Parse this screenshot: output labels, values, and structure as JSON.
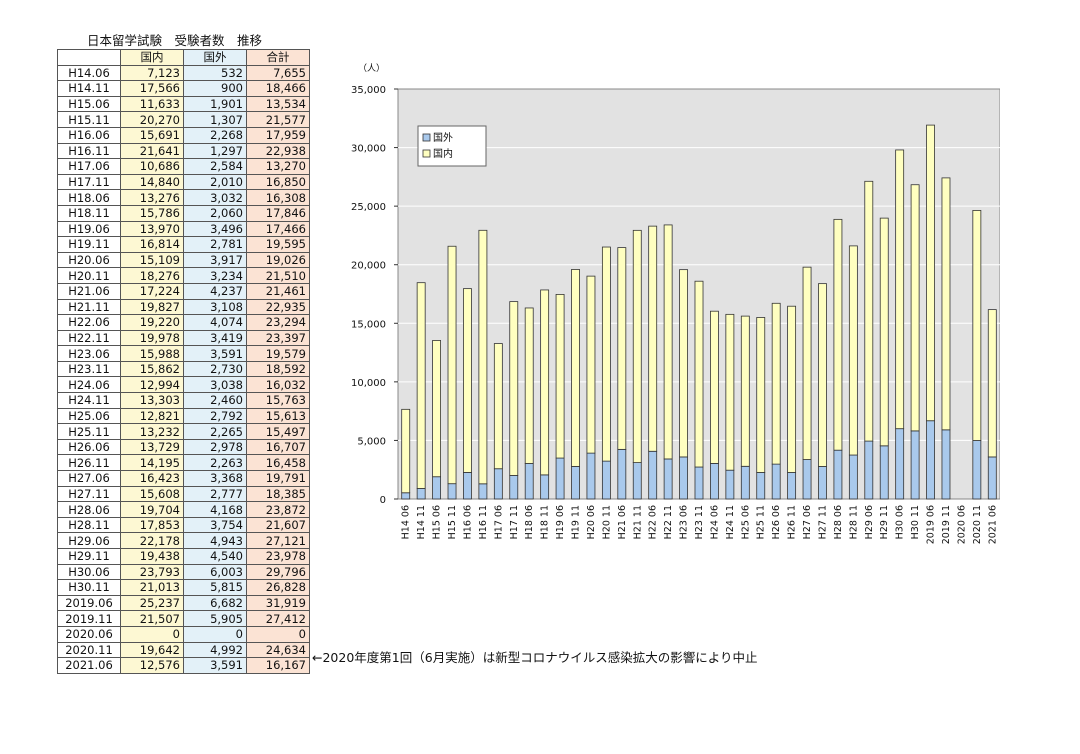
{
  "table": {
    "title": "日本留学試験　受験者数　推移",
    "headers": [
      "",
      "国内",
      "国外",
      "合計"
    ],
    "rows": [
      [
        "H14.06",
        "7,123",
        "532",
        "7,655"
      ],
      [
        "H14.11",
        "17,566",
        "900",
        "18,466"
      ],
      [
        "H15.06",
        "11,633",
        "1,901",
        "13,534"
      ],
      [
        "H15.11",
        "20,270",
        "1,307",
        "21,577"
      ],
      [
        "H16.06",
        "15,691",
        "2,268",
        "17,959"
      ],
      [
        "H16.11",
        "21,641",
        "1,297",
        "22,938"
      ],
      [
        "H17.06",
        "10,686",
        "2,584",
        "13,270"
      ],
      [
        "H17.11",
        "14,840",
        "2,010",
        "16,850"
      ],
      [
        "H18.06",
        "13,276",
        "3,032",
        "16,308"
      ],
      [
        "H18.11",
        "15,786",
        "2,060",
        "17,846"
      ],
      [
        "H19.06",
        "13,970",
        "3,496",
        "17,466"
      ],
      [
        "H19.11",
        "16,814",
        "2,781",
        "19,595"
      ],
      [
        "H20.06",
        "15,109",
        "3,917",
        "19,026"
      ],
      [
        "H20.11",
        "18,276",
        "3,234",
        "21,510"
      ],
      [
        "H21.06",
        "17,224",
        "4,237",
        "21,461"
      ],
      [
        "H21.11",
        "19,827",
        "3,108",
        "22,935"
      ],
      [
        "H22.06",
        "19,220",
        "4,074",
        "23,294"
      ],
      [
        "H22.11",
        "19,978",
        "3,419",
        "23,397"
      ],
      [
        "H23.06",
        "15,988",
        "3,591",
        "19,579"
      ],
      [
        "H23.11",
        "15,862",
        "2,730",
        "18,592"
      ],
      [
        "H24.06",
        "12,994",
        "3,038",
        "16,032"
      ],
      [
        "H24.11",
        "13,303",
        "2,460",
        "15,763"
      ],
      [
        "H25.06",
        "12,821",
        "2,792",
        "15,613"
      ],
      [
        "H25.11",
        "13,232",
        "2,265",
        "15,497"
      ],
      [
        "H26.06",
        "13,729",
        "2,978",
        "16,707"
      ],
      [
        "H26.11",
        "14,195",
        "2,263",
        "16,458"
      ],
      [
        "H27.06",
        "16,423",
        "3,368",
        "19,791"
      ],
      [
        "H27.11",
        "15,608",
        "2,777",
        "18,385"
      ],
      [
        "H28.06",
        "19,704",
        "4,168",
        "23,872"
      ],
      [
        "H28.11",
        "17,853",
        "3,754",
        "21,607"
      ],
      [
        "H29.06",
        "22,178",
        "4,943",
        "27,121"
      ],
      [
        "H29.11",
        "19,438",
        "4,540",
        "23,978"
      ],
      [
        "H30.06",
        "23,793",
        "6,003",
        "29,796"
      ],
      [
        "H30.11",
        "21,013",
        "5,815",
        "26,828"
      ],
      [
        "2019.06",
        "25,237",
        "6,682",
        "31,919"
      ],
      [
        "2019.11",
        "21,507",
        "5,905",
        "27,412"
      ],
      [
        "2020.06",
        "0",
        "0",
        "0"
      ],
      [
        "2020.11",
        "19,642",
        "4,992",
        "24,634"
      ],
      [
        "2021.06",
        "12,576",
        "3,591",
        "16,167"
      ]
    ]
  },
  "note": "←2020年度第1回（6月実施）は新型コロナウイルス感染拡大の影響により中止",
  "colors": {
    "domestic": "#ffffc0",
    "overseas": "#a9c9ec",
    "plot_bg": "#e2e2e2",
    "grid": "#ffffff",
    "bar_edge": "#333333"
  },
  "chart_data": {
    "type": "bar",
    "stacked": true,
    "unit_label": "（人）",
    "categories": [
      "H14 06",
      "H14 11",
      "H15 06",
      "H15 11",
      "H16 06",
      "H16 11",
      "H17 06",
      "H17 11",
      "H18 06",
      "H18 11",
      "H19 06",
      "H19 11",
      "H20 06",
      "H20 11",
      "H21 06",
      "H21 11",
      "H22 06",
      "H22 11",
      "H23 06",
      "H23 11",
      "H24 06",
      "H24 11",
      "H25 06",
      "H25 11",
      "H26 06",
      "H26 11",
      "H27 06",
      "H27 11",
      "H28 06",
      "H28 11",
      "H29 06",
      "H29 11",
      "H30 06",
      "H30 11",
      "2019 06",
      "2019 11",
      "2020 06",
      "2020 11",
      "2021 06"
    ],
    "series": [
      {
        "name": "国外",
        "values": [
          532,
          900,
          1901,
          1307,
          2268,
          1297,
          2584,
          2010,
          3032,
          2060,
          3496,
          2781,
          3917,
          3234,
          4237,
          3108,
          4074,
          3419,
          3591,
          2730,
          3038,
          2460,
          2792,
          2265,
          2978,
          2263,
          3368,
          2777,
          4168,
          3754,
          4943,
          4540,
          6003,
          5815,
          6682,
          5905,
          0,
          4992,
          3591
        ]
      },
      {
        "name": "国内",
        "values": [
          7123,
          17566,
          11633,
          20270,
          15691,
          21641,
          10686,
          14840,
          13276,
          15786,
          13970,
          16814,
          15109,
          18276,
          17224,
          19827,
          19220,
          19978,
          15988,
          15862,
          12994,
          13303,
          12821,
          13232,
          13729,
          14195,
          16423,
          15608,
          19704,
          17853,
          22178,
          19438,
          23793,
          21013,
          25237,
          21507,
          0,
          19642,
          12576
        ]
      }
    ],
    "ylim": [
      0,
      35000
    ],
    "yticks": [
      "0",
      "5,000",
      "10,000",
      "15,000",
      "20,000",
      "25,000",
      "30,000",
      "35,000"
    ],
    "ytick_values": [
      0,
      5000,
      10000,
      15000,
      20000,
      25000,
      30000,
      35000
    ],
    "grid": true,
    "legend_position": "top-left"
  }
}
